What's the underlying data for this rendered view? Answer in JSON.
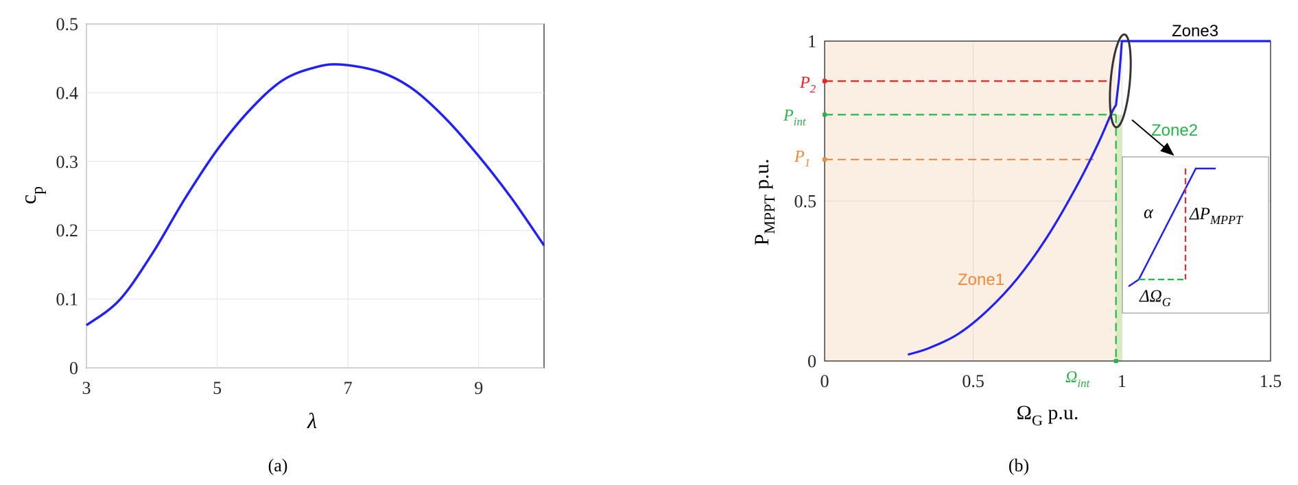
{
  "charts": {
    "a": {
      "caption": "(a)",
      "xlabel": "λ",
      "ylabel_main": "c",
      "ylabel_sub": "p"
    },
    "b": {
      "caption": "(b)",
      "xlabel_main": "Ω",
      "xlabel_sub": "G",
      "xlabel_unit": " p.u.",
      "ylabel_main": "P",
      "ylabel_sub": "MPPT",
      "ylabel_unit": " p.u.",
      "zones": {
        "zone1": "Zone1",
        "zone2": "Zone2",
        "zone3": "Zone3"
      },
      "markers": {
        "p2": {
          "main": "P",
          "sub": "2"
        },
        "pint": {
          "main": "P",
          "sub": "int"
        },
        "p1": {
          "main": "P",
          "sub": "1"
        },
        "omega_int": {
          "main": "Ω",
          "sub": "int"
        }
      },
      "inset": {
        "alpha": "α",
        "delta_p": {
          "main": "ΔP",
          "sub": "MPPT"
        },
        "delta_omega": {
          "main": "ΔΩ",
          "sub": "G"
        }
      }
    }
  },
  "colors": {
    "curve": "#1f1fff",
    "p2": "#ff1a1a",
    "pint": "#2ab34a",
    "p1": "#f08a3a",
    "zone1_fill": "#fbeee3",
    "zone2_fill": "#d6ecc0"
  },
  "chart_data": [
    {
      "type": "line",
      "xlim": [
        3,
        10
      ],
      "ylim": [
        0,
        0.5
      ],
      "xticks": [
        3,
        5,
        7,
        9
      ],
      "yticks": [
        0,
        0.1,
        0.2,
        0.3,
        0.4,
        0.5
      ],
      "grid": true,
      "series": [
        {
          "x": [
            3,
            3.5,
            4,
            4.5,
            5,
            5.5,
            6,
            6.5,
            6.9,
            7.5,
            8,
            8.5,
            9,
            9.5,
            10
          ],
          "y": [
            0.062,
            0.098,
            0.165,
            0.245,
            0.317,
            0.375,
            0.418,
            0.437,
            0.441,
            0.43,
            0.405,
            0.362,
            0.308,
            0.247,
            0.178
          ]
        }
      ]
    },
    {
      "type": "line",
      "xlim": [
        0,
        1.5
      ],
      "ylim": [
        0,
        1
      ],
      "xticks": [
        0,
        0.5,
        1,
        1.5
      ],
      "yticks": [
        0,
        0.5,
        1
      ],
      "grid": true,
      "series": [
        {
          "x": [
            0.28,
            0.35,
            0.45,
            0.55,
            0.65,
            0.75,
            0.85,
            0.92,
            0.965,
            0.98,
            0.99,
            1.0,
            1.5
          ],
          "y": [
            0.02,
            0.04,
            0.085,
            0.16,
            0.26,
            0.39,
            0.55,
            0.68,
            0.775,
            0.8,
            0.88,
            1.0,
            1.0
          ]
        }
      ],
      "levels": {
        "p2": 0.875,
        "pint": 0.77,
        "p1": 0.63,
        "omega_int": 0.98
      }
    }
  ]
}
